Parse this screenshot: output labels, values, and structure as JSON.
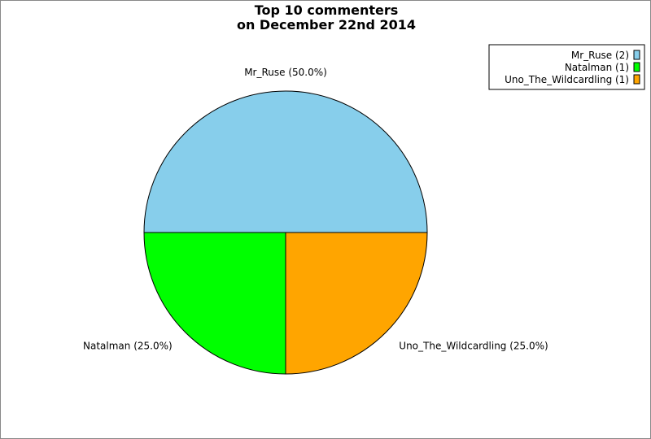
{
  "chart_data": {
    "type": "pie",
    "title": [
      "Top 10 commenters",
      "on December 22nd 2014"
    ],
    "slices": [
      {
        "name": "Mr_Ruse",
        "value": 2,
        "percent": 50.0,
        "color": "#87ceeb",
        "label": "Mr_Ruse (50.0%)",
        "legend": "Mr_Ruse (2)"
      },
      {
        "name": "Natalman",
        "value": 1,
        "percent": 25.0,
        "color": "#00ff00",
        "label": "Natalman (25.0%)",
        "legend": "Natalman (1)"
      },
      {
        "name": "Uno_The_Wildcardling",
        "value": 1,
        "percent": 25.0,
        "color": "#ffa500",
        "label": "Uno_The_Wildcardling (25.0%)",
        "legend": "Uno_The_Wildcardling (1)"
      }
    ],
    "start_angle_deg": 0,
    "direction": "counterclockwise",
    "legend_position": "top-right"
  }
}
